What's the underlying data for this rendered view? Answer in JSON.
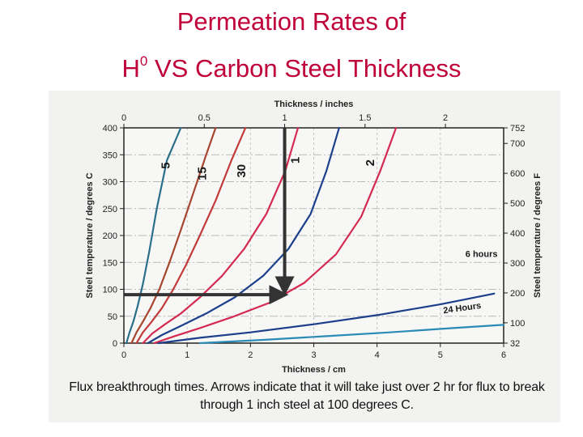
{
  "slide": {
    "title_line1": "Permeation Rates of",
    "title_line2_prefix": "H",
    "title_line2_sup": "0",
    "title_line2_suffix": " VS Carbon Steel Thickness",
    "caption_line1": "Flux breakthrough times.  Arrows indicate that it will take just over 2 hr for flux to break",
    "caption_line2": "through 1 inch steel at 100 degrees C."
  },
  "chart_data": {
    "type": "line",
    "title": "",
    "xlabel": "Thickness / cm",
    "x2label": "Thickness / inches",
    "ylabel": "Steel temperature / degrees C",
    "y2label": "Steel temperature / degrees F",
    "xlim": [
      0,
      6
    ],
    "ylim": [
      0,
      400
    ],
    "x_ticks": [
      "0",
      "1",
      "2",
      "3",
      "4",
      "5",
      "6"
    ],
    "x_tick_values": [
      0,
      1,
      2,
      3,
      4,
      5,
      6
    ],
    "y_ticks": [
      "0",
      "50",
      "100",
      "150",
      "200",
      "250",
      "300",
      "350",
      "400"
    ],
    "y_tick_values": [
      0,
      50,
      100,
      150,
      200,
      250,
      300,
      350,
      400
    ],
    "x2_ticks": [
      "0",
      "0.5",
      "1",
      "1.5",
      "2"
    ],
    "x2_tick_values": [
      0,
      0.5,
      1,
      1.5,
      2
    ],
    "y2_ticks": [
      "32",
      "100",
      "200",
      "300",
      "400",
      "500",
      "600",
      "700",
      "752"
    ],
    "y2_tick_values": [
      32,
      100,
      200,
      300,
      400,
      500,
      600,
      700,
      752
    ],
    "grid": true,
    "series": [
      {
        "name": "5",
        "color": "#2a6f8a",
        "x": [
          0.04,
          0.09,
          0.15,
          0.22,
          0.3,
          0.4,
          0.52,
          0.68,
          0.9
        ],
        "y": [
          0,
          20,
          40,
          70,
          110,
          170,
          250,
          340,
          400
        ]
      },
      {
        "name": "15",
        "color": "#a6462f",
        "x": [
          0.12,
          0.2,
          0.3,
          0.42,
          0.56,
          0.72,
          0.9,
          1.1,
          1.3,
          1.45
        ],
        "y": [
          0,
          20,
          40,
          65,
          100,
          150,
          210,
          280,
          350,
          400
        ]
      },
      {
        "name": "30",
        "color": "#c23a3a",
        "x": [
          0.2,
          0.3,
          0.44,
          0.6,
          0.78,
          0.98,
          1.2,
          1.45,
          1.7,
          1.92
        ],
        "y": [
          0,
          20,
          40,
          65,
          100,
          145,
          200,
          265,
          340,
          400
        ]
      },
      {
        "name": "1",
        "color": "#d42a52",
        "x": [
          0.3,
          0.45,
          0.65,
          0.9,
          1.2,
          1.55,
          1.9,
          2.25,
          2.55,
          2.75
        ],
        "y": [
          0,
          18,
          35,
          55,
          85,
          125,
          175,
          240,
          320,
          400
        ]
      },
      {
        "name": "",
        "color": "#1c3f8c",
        "x": [
          0.38,
          0.6,
          0.9,
          1.3,
          1.75,
          2.2,
          2.6,
          2.95,
          3.2,
          3.4
        ],
        "y": [
          0,
          15,
          32,
          55,
          85,
          125,
          175,
          240,
          320,
          400
        ]
      },
      {
        "name": "2",
        "color": "#d42a52",
        "x": [
          0.48,
          0.8,
          1.2,
          1.7,
          2.3,
          2.85,
          3.35,
          3.75,
          4.05,
          4.3
        ],
        "y": [
          0,
          13,
          28,
          48,
          75,
          112,
          165,
          235,
          320,
          400
        ]
      },
      {
        "name": "6 hours",
        "color": "#1c3f8c",
        "x": [
          0.55,
          1.2,
          2.0,
          3.0,
          4.0,
          5.0,
          5.85
        ],
        "y": [
          0,
          10,
          20,
          35,
          52,
          72,
          92
        ]
      },
      {
        "name": "24 Hours",
        "color": "#2a8ab8",
        "x": [
          1.2,
          2.2,
          3.2,
          4.2,
          5.2,
          6.0
        ],
        "y": [
          0,
          6,
          13,
          20,
          28,
          34
        ]
      }
    ],
    "annotations": [
      {
        "text": "5",
        "x": 0.72,
        "y": 330
      },
      {
        "text": "15",
        "x": 1.3,
        "y": 315
      },
      {
        "text": "30",
        "x": 1.92,
        "y": 320
      },
      {
        "text": "1",
        "x": 2.77,
        "y": 340
      },
      {
        "text": "2",
        "x": 3.95,
        "y": 335
      },
      {
        "text": "6 hours",
        "x": 5.65,
        "y": 160
      },
      {
        "text": "24 Hours",
        "x": 5.35,
        "y": 60
      }
    ],
    "arrows": [
      {
        "from": [
          2.54,
          400
        ],
        "to": [
          2.54,
          100
        ]
      },
      {
        "from": [
          0,
          90
        ],
        "to": [
          2.5,
          90
        ]
      }
    ],
    "legend": "none"
  }
}
